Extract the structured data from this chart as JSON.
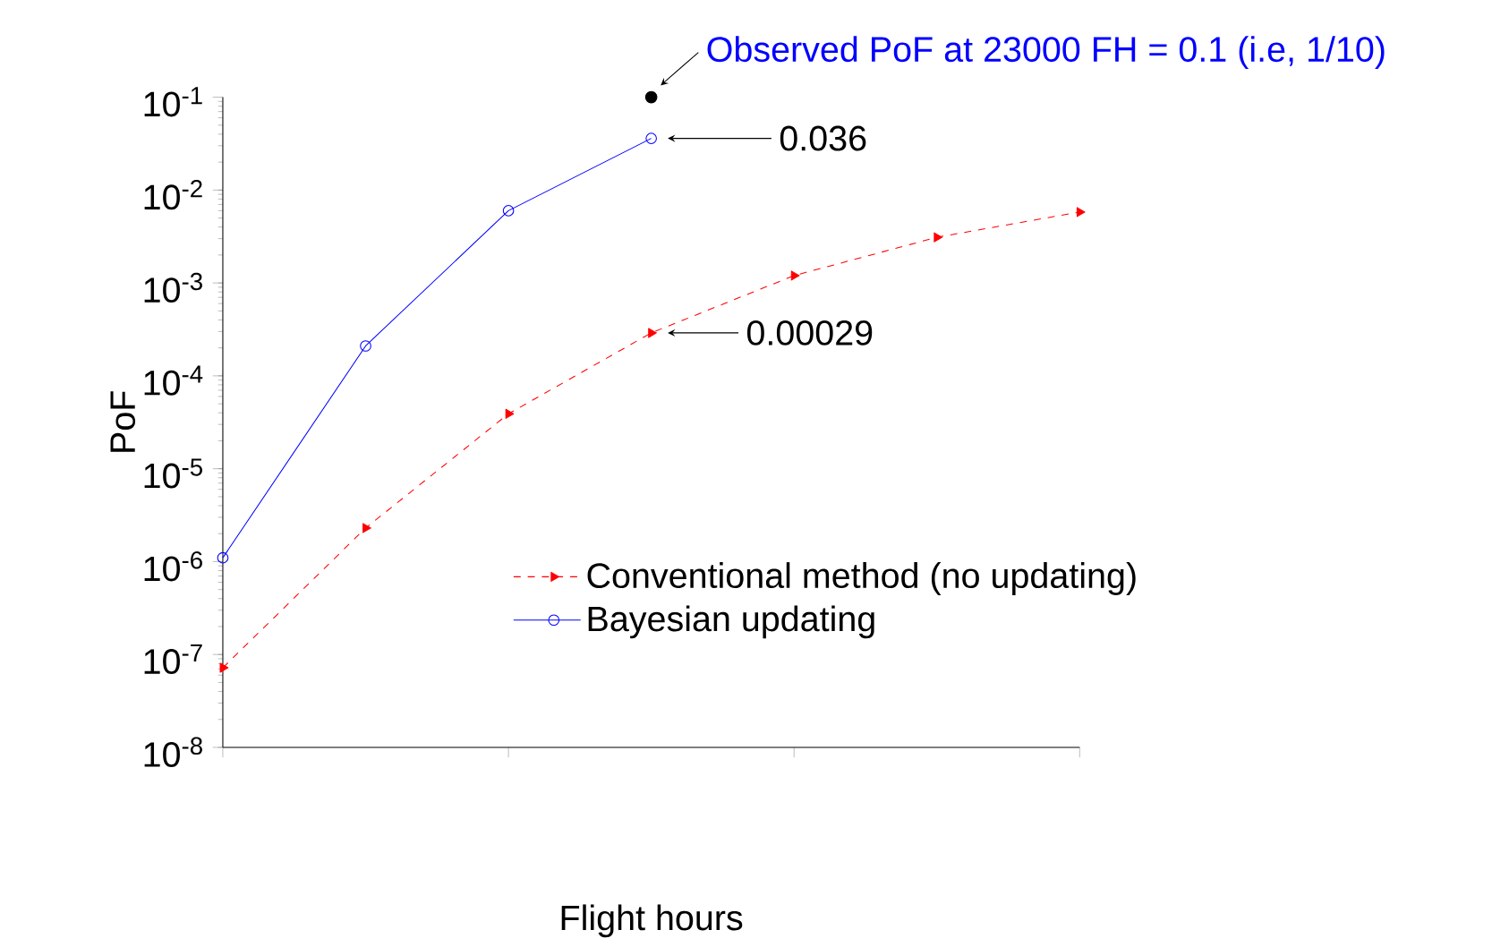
{
  "chart_data": {
    "type": "line",
    "xlabel": "Flight hours",
    "ylabel": "PoF",
    "log": "y",
    "categories": [
      null,
      null,
      null,
      null,
      null,
      null,
      null
    ],
    "ylim": [
      1e-08,
      0.1
    ],
    "yticks": [
      {
        "value": 1e-08,
        "label": "10$^{-8}$"
      },
      {
        "value": 1e-07,
        "label": "10$^{-7}$"
      },
      {
        "value": 1e-06,
        "label": "10$^{-6}$"
      },
      {
        "value": 1e-05,
        "label": "10$^{-5}$"
      },
      {
        "value": 0.0001,
        "label": "10$^{-4}$"
      },
      {
        "value": 0.001,
        "label": "10$^{-3}$"
      },
      {
        "value": 0.01,
        "label": "10$^{-2}$"
      },
      {
        "value": 0.1,
        "label": "10$^{-1}$"
      }
    ],
    "legend": "bottom right",
    "series": [
      {
        "name": "Conventional method (no updating)",
        "color": "#ff0000",
        "marker": "triangle",
        "line_style": "dashed",
        "values": [
          7.2e-08,
          2.3e-06,
          3.9e-05,
          0.00029,
          0.0012,
          0.0031,
          0.0058
        ]
      },
      {
        "name": "Bayesian updating",
        "color": "#0000ff",
        "marker": "circle",
        "line_style": "solid",
        "values": [
          1.1e-06,
          0.00021,
          0.006,
          0.036,
          null,
          null,
          null
        ]
      },
      {
        "type": "scatter",
        "color": "#000000",
        "marker": "circle",
        "values": [
          null,
          null,
          null,
          0.1,
          null,
          null,
          null
        ]
      }
    ],
    "annotations": [
      "Observed PoF at 23000 FH = 0.1 (i.e, 1/10)",
      "0.036",
      "0.00029"
    ]
  }
}
